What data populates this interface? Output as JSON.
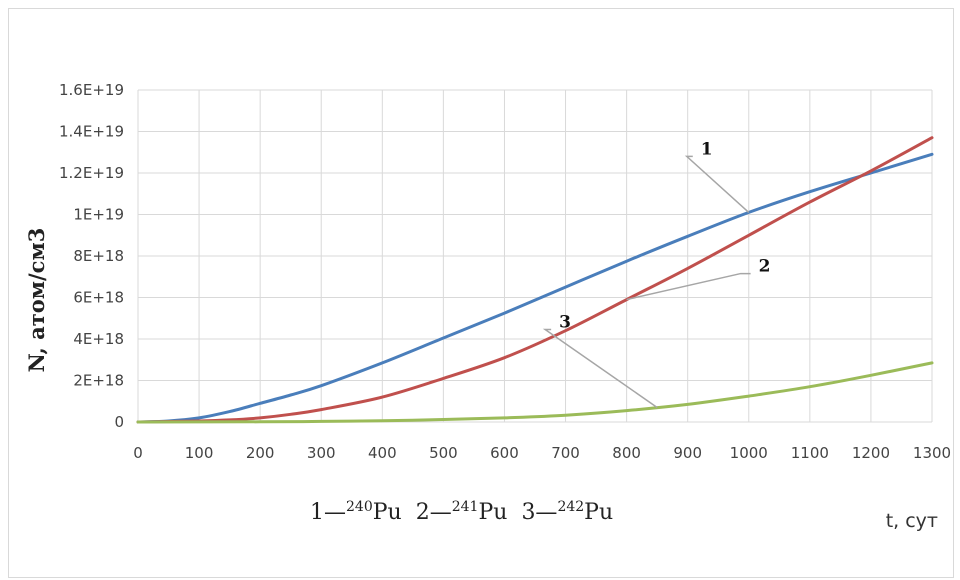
{
  "chart_data": {
    "type": "line",
    "ylabel": "N, атом/см3",
    "xlabel": "t, сут",
    "xlim": [
      0,
      1300
    ],
    "ylim": [
      0,
      1.6e+19
    ],
    "x_ticks": [
      "0",
      "100",
      "200",
      "300",
      "400",
      "500",
      "600",
      "700",
      "800",
      "900",
      "1000",
      "1100",
      "1200",
      "1300"
    ],
    "y_ticks": [
      "0",
      "2E+18",
      "4E+18",
      "6E+18",
      "8E+18",
      "1E+19",
      "1.2E+19",
      "1.4E+19",
      "1.6E+19"
    ],
    "grid": true,
    "series": [
      {
        "name": "240Pu",
        "callout": "1",
        "color": "#4a7ebb",
        "x": [
          0,
          50,
          100,
          150,
          200,
          250,
          300,
          400,
          500,
          600,
          700,
          800,
          900,
          1000,
          1100,
          1200,
          1300
        ],
        "y": [
          0,
          5e+16,
          2e+17,
          5e+17,
          9e+17,
          1.3e+18,
          1.75e+18,
          2.85e+18,
          4.05e+18,
          5.25e+18,
          6.5e+18,
          7.75e+18,
          8.95e+18,
          1.01e+19,
          1.11e+19,
          1.2e+19,
          1.29e+19
        ]
      },
      {
        "name": "241Pu",
        "callout": "2",
        "color": "#c0504d",
        "x": [
          0,
          100,
          150,
          200,
          250,
          300,
          400,
          500,
          600,
          700,
          800,
          900,
          1000,
          1100,
          1200,
          1300
        ],
        "y": [
          0,
          5e+16,
          1e+17,
          2e+17,
          3.7e+17,
          6e+17,
          1.2e+18,
          2.1e+18,
          3.1e+18,
          4.4e+18,
          5.9e+18,
          7.4e+18,
          9e+18,
          1.06e+19,
          1.21e+19,
          1.37e+19
        ]
      },
      {
        "name": "242Pu",
        "callout": "3",
        "color": "#9bbb59",
        "x": [
          0,
          200,
          300,
          400,
          500,
          600,
          700,
          800,
          900,
          1000,
          1100,
          1200,
          1300
        ],
        "y": [
          0,
          1e+16,
          3e+16,
          6e+16,
          1.2e+17,
          2e+17,
          3.3e+17,
          5.5e+17,
          8.5e+17,
          1.25e+18,
          1.7e+18,
          2.25e+18,
          2.85e+18
        ]
      }
    ],
    "callouts": [
      {
        "label": "1",
        "series": 0,
        "at_x": 1000
      },
      {
        "label": "2",
        "series": 1,
        "at_x": 800
      },
      {
        "label": "3",
        "series": 2,
        "at_x": 850
      }
    ],
    "legend": [
      {
        "num": "1",
        "isotope": "240",
        "element": "Pu"
      },
      {
        "num": "2",
        "isotope": "241",
        "element": "Pu"
      },
      {
        "num": "3",
        "isotope": "242",
        "element": "Pu"
      }
    ],
    "legend_dash": "—",
    "grid_color": "#d9d9d9",
    "callout_line_color": "#a6a6a6"
  }
}
